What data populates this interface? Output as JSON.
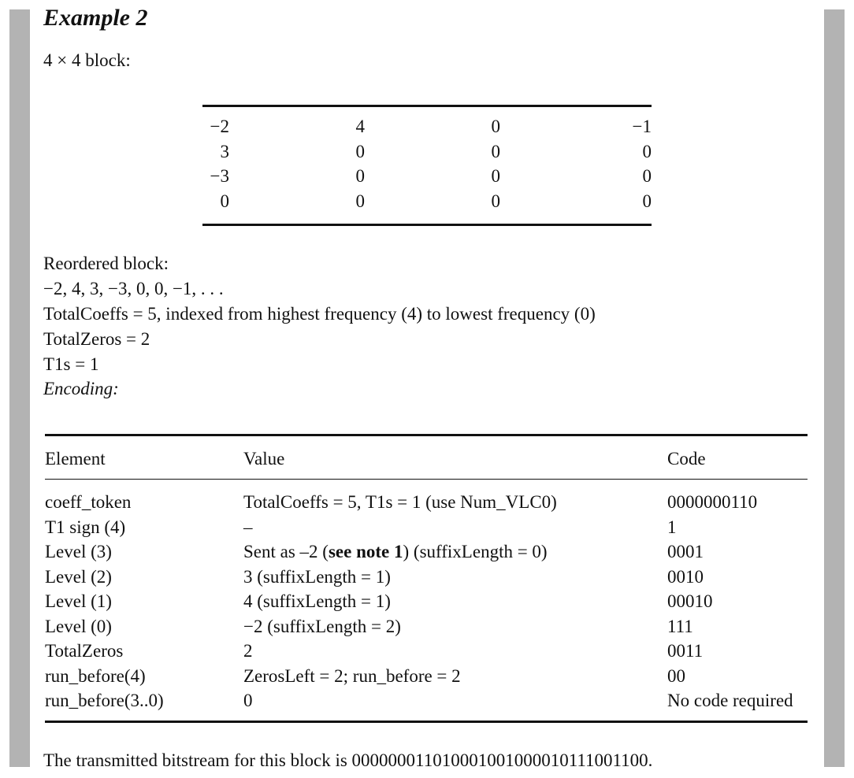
{
  "heading": "Example 2",
  "block_label": "4 × 4 block:",
  "matrix": [
    [
      "−2",
      "4",
      "0",
      "−1"
    ],
    [
      "3",
      "0",
      "0",
      "0"
    ],
    [
      "−3",
      "0",
      "0",
      "0"
    ],
    [
      "0",
      "0",
      "0",
      "0"
    ]
  ],
  "reordered_label": "Reordered block:",
  "reordered_values": "−2, 4, 3, −3, 0, 0, −1, . . .",
  "total_coeffs_line": "TotalCoeffs = 5, indexed from highest frequency (4) to lowest frequency (0)",
  "total_zeros_line": "TotalZeros = 2",
  "t1s_line": "T1s = 1",
  "encoding_label": "Encoding:",
  "table": {
    "headers": [
      "Element",
      "Value",
      "Code"
    ],
    "rows": [
      {
        "element": "coeff_token",
        "value": "TotalCoeffs = 5, T1s = 1 (use Num_VLC0)",
        "code": "0000000110"
      },
      {
        "element": "T1 sign (4)",
        "value": "–",
        "code": "1"
      },
      {
        "element": "Level (3)",
        "value_pre": "Sent as –2 (",
        "value_bold": "see note 1",
        "value_post": ") (suffixLength = 0)",
        "code": "0001"
      },
      {
        "element": "Level (2)",
        "value": "3 (suffixLength = 1)",
        "code": "0010"
      },
      {
        "element": "Level (1)",
        "value": "4 (suffixLength = 1)",
        "code": "00010"
      },
      {
        "element": "Level (0)",
        "value": "−2 (suffixLength = 2)",
        "code": "111"
      },
      {
        "element": "TotalZeros",
        "value": "2",
        "code": "0011"
      },
      {
        "element": "run_before(4)",
        "value": "ZerosLeft = 2; run_before = 2",
        "code": "00"
      },
      {
        "element": "run_before(3..0)",
        "value": "0",
        "code": "No code required"
      }
    ]
  },
  "bitstream_line": "The transmitted bitstream for this block is 000000011010001001000010111001100."
}
